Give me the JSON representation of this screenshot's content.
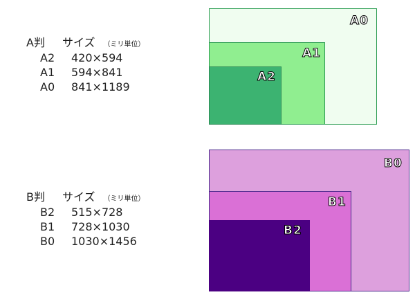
{
  "a_series": {
    "header": {
      "series": "A判",
      "size": "サイズ",
      "unit": "（ミリ単位）"
    },
    "rows": [
      {
        "name": "A2",
        "size": "420×594"
      },
      {
        "name": "A1",
        "size": "594×841"
      },
      {
        "name": "A0",
        "size": "841×1189"
      }
    ],
    "boxes": [
      {
        "label": "A0",
        "color": "#f0fdf0",
        "border": "#2e9e54"
      },
      {
        "label": "A1",
        "color": "#90ee90",
        "border": "#2e9e54"
      },
      {
        "label": "A2",
        "color": "#3cb371",
        "border": "#2e8b57"
      }
    ]
  },
  "b_series": {
    "header": {
      "series": "B判",
      "size": "サイズ",
      "unit": "（ミリ単位）"
    },
    "rows": [
      {
        "name": "B2",
        "size": "515×728"
      },
      {
        "name": "B1",
        "size": "728×1030"
      },
      {
        "name": "B0",
        "size": "1030×1456"
      }
    ],
    "boxes": [
      {
        "label": "B0",
        "color": "#dda0dd",
        "border": "#4b2a8c"
      },
      {
        "label": "B1",
        "color": "#da70d6",
        "border": "#4b2a8c"
      },
      {
        "label": "B2",
        "color": "#4b0082",
        "border": "#4b0082"
      }
    ]
  }
}
